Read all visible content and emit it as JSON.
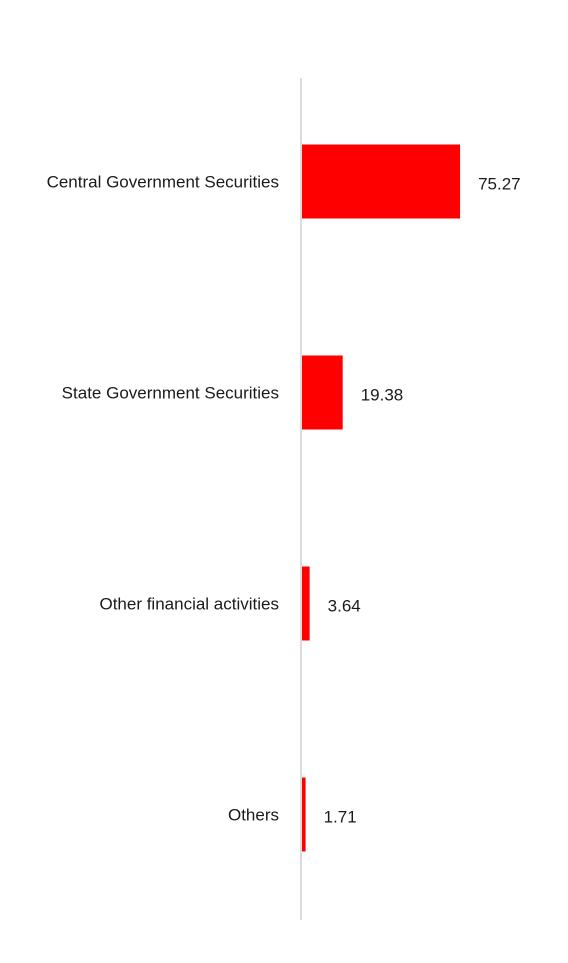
{
  "chart_data": {
    "type": "bar",
    "orientation": "horizontal",
    "categories": [
      "Central Government Securities",
      "State Government Securities",
      "Other financial activities",
      "Others"
    ],
    "values": [
      75.27,
      19.38,
      3.64,
      1.71
    ],
    "value_labels": [
      "75.27",
      "19.38",
      "3.64",
      "1.71"
    ],
    "title": "",
    "xlabel": "",
    "ylabel": "",
    "xlim": [
      0,
      100
    ],
    "grid": false,
    "legend": "none",
    "colors": {
      "bar": "#ff0000",
      "axis": "#d0d0d0",
      "text": "#1a1a1a"
    }
  }
}
